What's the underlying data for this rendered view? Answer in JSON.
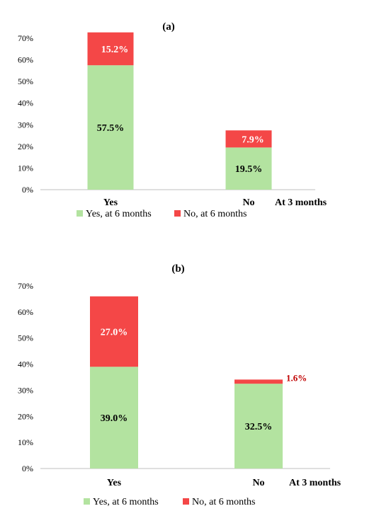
{
  "colors": {
    "yes": "#b3e3a0",
    "no": "#f44747",
    "axis": "#bfbfbf",
    "text": "#000000",
    "label_red": "#c00000"
  },
  "chart_data": [
    {
      "type": "bar",
      "stacked": true,
      "title": "(a)",
      "categories": [
        "Yes",
        "No"
      ],
      "xlabel": "At 3 months",
      "series": [
        {
          "name": "Yes, at 6 months",
          "values": [
            57.5,
            19.5
          ]
        },
        {
          "name": "No, at 6 months",
          "values": [
            15.2,
            7.9
          ]
        }
      ],
      "data_labels": [
        [
          "57.5%",
          "19.5%"
        ],
        [
          "15.2%",
          "7.9%"
        ]
      ],
      "yticks": [
        "0%",
        "10%",
        "20%",
        "30%",
        "40%",
        "50%",
        "60%",
        "70%"
      ],
      "ylim": [
        0,
        70
      ],
      "legend": "bottom",
      "grid": false
    },
    {
      "type": "bar",
      "stacked": true,
      "title": "(b)",
      "categories": [
        "Yes",
        "No"
      ],
      "xlabel": "At 3 months",
      "series": [
        {
          "name": "Yes, at 6 months",
          "values": [
            39.0,
            32.5
          ]
        },
        {
          "name": "No, at 6 months",
          "values": [
            27.0,
            1.6
          ]
        }
      ],
      "data_labels": [
        [
          "39.0%",
          "32.5%"
        ],
        [
          "27.0%",
          "1.6%"
        ]
      ],
      "yticks": [
        "0%",
        "10%",
        "20%",
        "30%",
        "40%",
        "50%",
        "60%",
        "70%"
      ],
      "ylim": [
        0,
        70
      ],
      "legend": "bottom",
      "grid": false
    }
  ]
}
